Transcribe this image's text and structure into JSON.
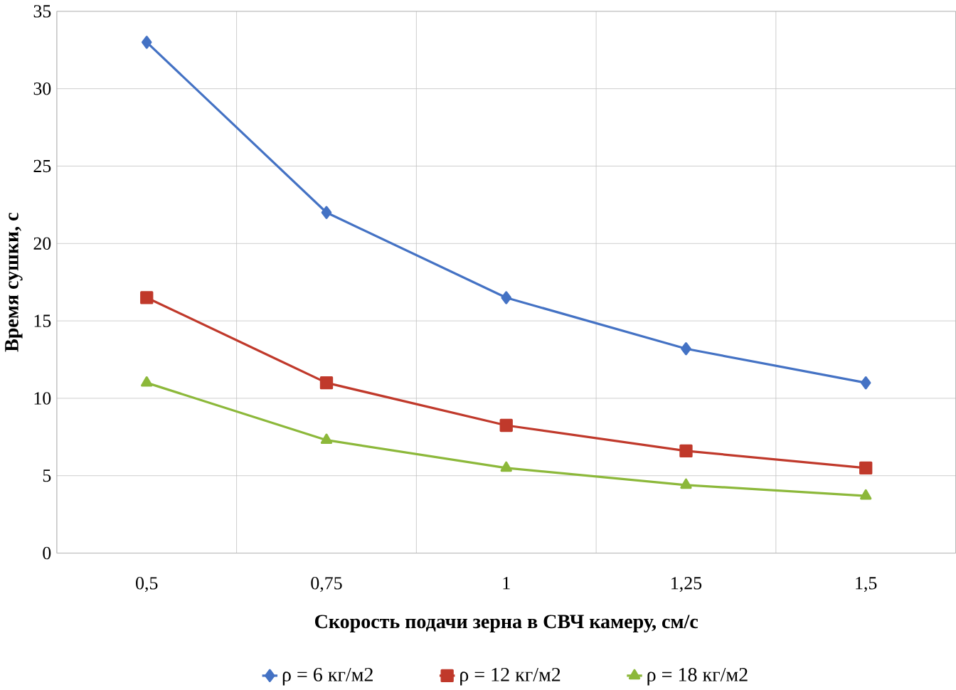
{
  "chart_data": {
    "type": "line",
    "xlabel": "Скорость подачи зерна в СВЧ камеру, см/с",
    "ylabel": "Время сушки, с",
    "categories": [
      "0,5",
      "0,75",
      "1",
      "1,25",
      "1,5"
    ],
    "series": [
      {
        "name": "ρ = 6 кг/м2",
        "color": "#4472c4",
        "marker": "diamond",
        "values": [
          33,
          22,
          16.5,
          13.2,
          11
        ]
      },
      {
        "name": "ρ = 12 кг/м2",
        "color": "#c0392b",
        "marker": "square",
        "values": [
          16.5,
          11,
          8.25,
          6.6,
          5.5
        ]
      },
      {
        "name": "ρ = 18 кг/м2",
        "color": "#8cb83a",
        "marker": "triangle",
        "values": [
          11,
          7.3,
          5.5,
          4.4,
          3.7
        ]
      }
    ],
    "ylim": [
      0,
      35
    ],
    "yticks": [
      0,
      5,
      10,
      15,
      20,
      25,
      30,
      35
    ],
    "grid": true,
    "legend": "bottom",
    "line_style": "solid"
  }
}
